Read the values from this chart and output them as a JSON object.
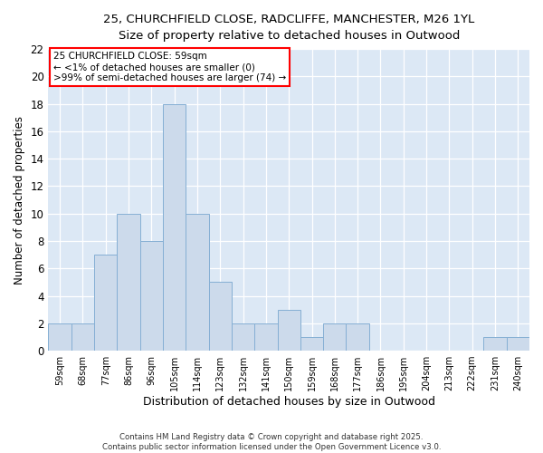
{
  "title_line1": "25, CHURCHFIELD CLOSE, RADCLIFFE, MANCHESTER, M26 1YL",
  "title_line2": "Size of property relative to detached houses in Outwood",
  "xlabel": "Distribution of detached houses by size in Outwood",
  "ylabel": "Number of detached properties",
  "bar_color": "#ccdaeb",
  "bar_edge_color": "#85afd4",
  "background_color": "#dce8f5",
  "annotation_text_line1": "25 CHURCHFIELD CLOSE: 59sqm",
  "annotation_text_line2": "← <1% of detached houses are smaller (0)",
  "annotation_text_line3": ">99% of semi-detached houses are larger (74) →",
  "bins": [
    "59sqm",
    "68sqm",
    "77sqm",
    "86sqm",
    "96sqm",
    "105sqm",
    "114sqm",
    "123sqm",
    "132sqm",
    "141sqm",
    "150sqm",
    "159sqm",
    "168sqm",
    "177sqm",
    "186sqm",
    "195sqm",
    "204sqm",
    "213sqm",
    "222sqm",
    "231sqm",
    "240sqm"
  ],
  "values": [
    2,
    2,
    7,
    10,
    8,
    18,
    10,
    5,
    2,
    2,
    3,
    1,
    2,
    2,
    0,
    0,
    0,
    0,
    0,
    1,
    1
  ],
  "ylim": [
    0,
    22
  ],
  "yticks": [
    0,
    2,
    4,
    6,
    8,
    10,
    12,
    14,
    16,
    18,
    20,
    22
  ],
  "footnote_line1": "Contains HM Land Registry data © Crown copyright and database right 2025.",
  "footnote_line2": "Contains public sector information licensed under the Open Government Licence v3.0."
}
